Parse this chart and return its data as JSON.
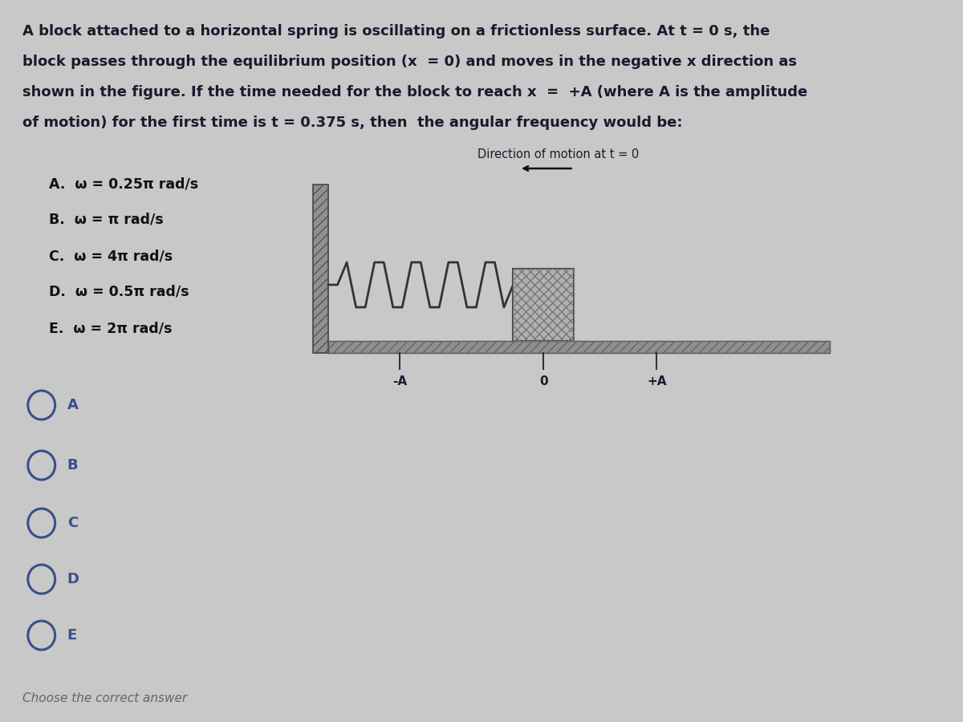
{
  "bg_color": "#c8c8c8",
  "text_color": "#1a1a2e",
  "title_lines": [
    "A block attached to a horizontal spring is oscillating on a frictionless surface. At t = 0 s, the",
    "block passes through the equilibrium position (x  = 0) and moves in the negative x direction as",
    "shown in the figure. If the time needed for the block to reach x  =  +A (where A is the amplitude",
    "of motion) for the first time is t = 0.375 s, then  the angular frequency would be:"
  ],
  "options": [
    "A.  ω = 0.25π rad/s",
    "B.  ω = π rad/s",
    "C.  ω = 4π rad/s",
    "D.  ω = 0.5π rad/s",
    "E.  ω = 2π rad/s"
  ],
  "radio_labels": [
    "A",
    "B",
    "C",
    "D",
    "E"
  ],
  "footer": "Choose the correct answer",
  "diagram_label": "Direction of motion at t = 0",
  "axis_labels": [
    "-A",
    "0",
    "+A"
  ],
  "radio_color": "#3a4f8a",
  "option_color": "#111111",
  "arrow_color": "#111111"
}
